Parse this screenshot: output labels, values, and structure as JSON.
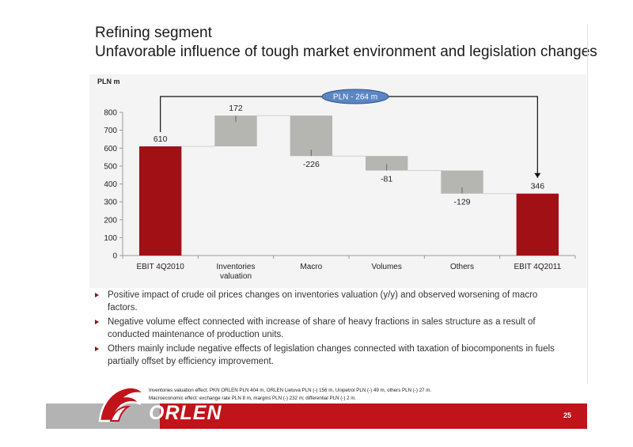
{
  "header": {
    "title_line1": "Refining segment",
    "title_line2": "Unfavorable influence of tough market environment and legislation changes"
  },
  "chart_data": {
    "type": "bar",
    "subtype": "waterfall",
    "unit_label": "PLN m",
    "categories": [
      "EBIT 4Q2010",
      "Inventories valuation",
      "Macro",
      "Volumes",
      "Others",
      "EBIT 4Q2011"
    ],
    "category_lines": [
      [
        "EBIT 4Q2010"
      ],
      [
        "Inventories",
        "valuation"
      ],
      [
        "Macro"
      ],
      [
        "Volumes"
      ],
      [
        "Others"
      ],
      [
        "EBIT 4Q2011"
      ]
    ],
    "values": [
      610,
      172,
      -226,
      -81,
      -129,
      346
    ],
    "data_labels": [
      "610",
      "172",
      "-226",
      "-81",
      "-129",
      "346"
    ],
    "bar_kinds": [
      "total",
      "delta",
      "delta",
      "delta",
      "delta",
      "total"
    ],
    "ylim": [
      0,
      800
    ],
    "yticks": [
      0,
      100,
      200,
      300,
      400,
      500,
      600,
      700,
      800
    ],
    "grid": false,
    "annotation": "PLN - 264 m",
    "colors": {
      "total": "#a01015",
      "delta": "#b5b5b1",
      "connector": "#d0d0d0",
      "annotation_fill": "#5b86c4"
    }
  },
  "bullets": [
    "Positive impact of crude oil prices changes on inventories valuation (y/y) and observed worsening of  macro factors.",
    "Negative volume effect connected with increase of share of heavy fractions in sales structure as a result of conducted maintenance of production units.",
    "Others mainly include negative effects of legislation changes connected with taxation of biocomponents in fuels partially offset by efficiency improvement."
  ],
  "footnotes": {
    "line1": "Inventories valuation effect: PKN ORLEN PLN 404 m, ORLEN Lietuva PLN (-) 156 m, Unipetrol PLN (-) 49 m, others PLN (-) 27 m.",
    "line2": "Macroeconomic effect: exchange rate PLN 8 m, margins PLN (-) 232 m; differential PLN (-) 2 m."
  },
  "footer": {
    "brand": "ORLEN",
    "page_number": "25"
  }
}
